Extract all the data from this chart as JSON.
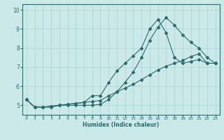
{
  "xlabel": "Humidex (Indice chaleur)",
  "background_color": "#cce9e9",
  "grid_color": "#aad4d4",
  "line_color": "#2d6b6b",
  "xlim": [
    -0.5,
    23.5
  ],
  "ylim": [
    4.5,
    10.3
  ],
  "x": [
    0,
    1,
    2,
    3,
    4,
    5,
    6,
    7,
    8,
    9,
    10,
    11,
    12,
    13,
    14,
    15,
    16,
    17,
    18,
    19,
    20,
    21,
    22,
    23
  ],
  "line1": [
    5.3,
    4.9,
    4.9,
    4.9,
    5.0,
    5.0,
    5.0,
    5.0,
    5.0,
    5.05,
    5.3,
    5.7,
    6.2,
    6.75,
    7.5,
    8.4,
    9.1,
    9.6,
    9.2,
    8.7,
    8.3,
    8.0,
    7.5,
    7.2
  ],
  "line2": [
    5.3,
    4.9,
    4.9,
    4.95,
    5.0,
    5.05,
    5.1,
    5.15,
    5.5,
    5.5,
    6.2,
    6.8,
    7.2,
    7.6,
    8.0,
    9.0,
    9.5,
    8.8,
    7.5,
    7.2,
    7.3,
    7.4,
    7.2,
    7.2
  ],
  "line3": [
    5.3,
    4.9,
    4.9,
    4.95,
    5.0,
    5.05,
    5.1,
    5.15,
    5.2,
    5.25,
    5.5,
    5.7,
    5.9,
    6.1,
    6.35,
    6.6,
    6.85,
    7.05,
    7.2,
    7.35,
    7.55,
    7.7,
    7.2,
    7.2
  ],
  "yticks": [
    5,
    6,
    7,
    8,
    9,
    10
  ],
  "xticks": [
    0,
    1,
    2,
    3,
    4,
    5,
    6,
    7,
    8,
    9,
    10,
    11,
    12,
    13,
    14,
    15,
    16,
    17,
    18,
    19,
    20,
    21,
    22,
    23
  ]
}
